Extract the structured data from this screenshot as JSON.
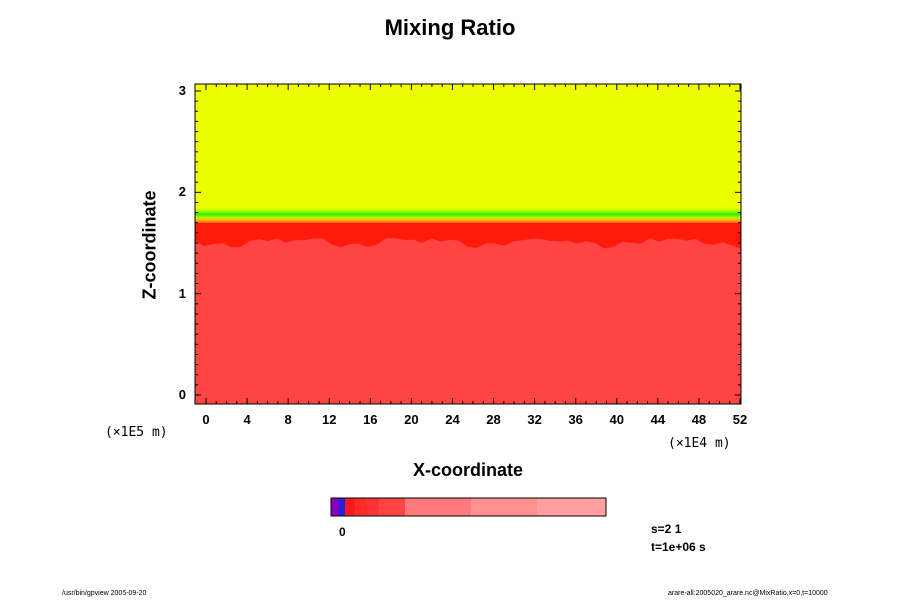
{
  "chart_data": {
    "type": "heatmap",
    "title": "Mixing Ratio",
    "xlabel": "X-coordinate",
    "ylabel": "Z-coordinate",
    "x_unit": "(×1E4 m)",
    "y_unit": "(×1E5 m)",
    "xlim": [
      0,
      52
    ],
    "ylim": [
      0,
      3
    ],
    "x_ticks": [
      "0",
      "4",
      "8",
      "12",
      "16",
      "20",
      "24",
      "28",
      "32",
      "36",
      "40",
      "44",
      "48",
      "52"
    ],
    "y_ticks": [
      "0",
      "1",
      "2",
      "3"
    ],
    "colorbar_tick_label": "0",
    "regions": [
      {
        "name": "upper layer",
        "z_from": 1.85,
        "z_to": 3.1,
        "color": "#eeff00"
      },
      {
        "name": "transition band",
        "z_from": 1.7,
        "z_to": 1.85,
        "color": "#22ee00"
      },
      {
        "name": "lower layer",
        "z_from": -0.1,
        "z_to": 1.6,
        "color": "#ff4444"
      }
    ],
    "colorbar_colors": [
      "#8800bb",
      "#2222dd",
      "#ff1a1a",
      "#ff2a2a",
      "#ff3333",
      "#ff4444",
      "#ff7a7a",
      "#ff9090",
      "#ff9f9f"
    ]
  },
  "info": {
    "step": "s=2 1",
    "time": "t=1e+06 s"
  },
  "footer": {
    "left": "/usr/bin/gpview 2005-09-20",
    "right": "arare-all:2005020_arare.nc@MixRatio,x=0,t=10000"
  }
}
